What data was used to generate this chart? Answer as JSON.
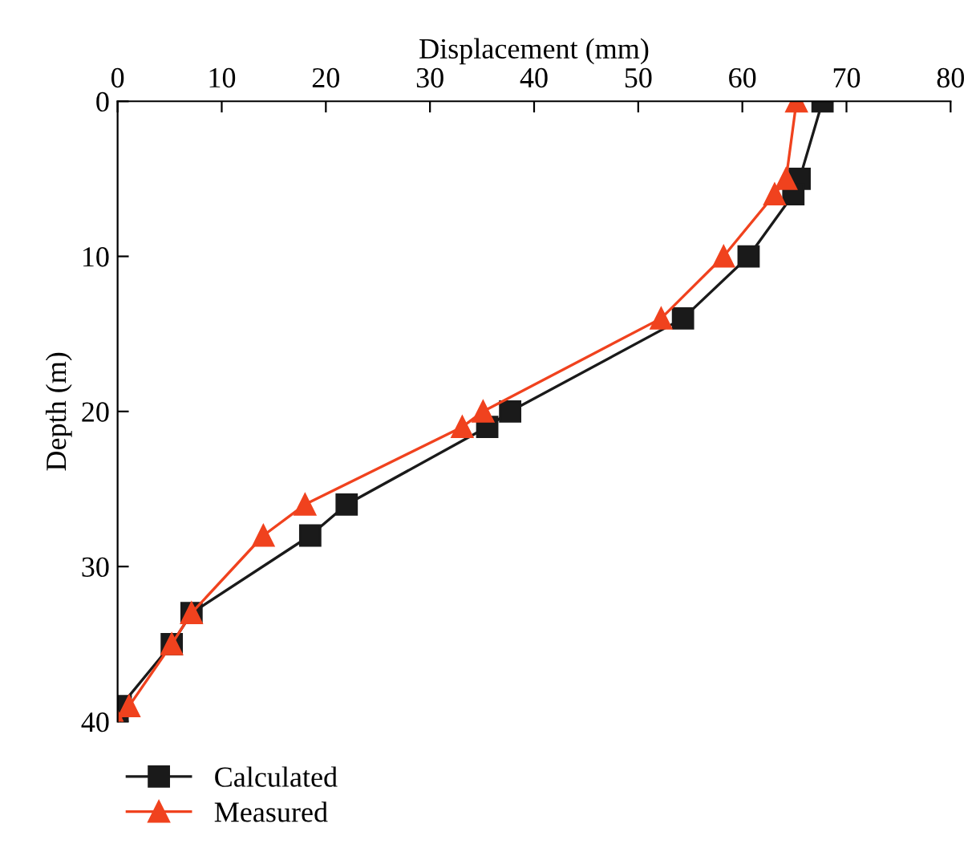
{
  "chart_data": {
    "type": "line",
    "xlabel": "Displacement (mm)",
    "ylabel": "Depth (m)",
    "xlim": [
      0,
      80
    ],
    "xticks": [
      0,
      10,
      20,
      30,
      40,
      50,
      60,
      70,
      80
    ],
    "ylim": [
      40,
      0
    ],
    "yticks": [
      0,
      10,
      20,
      30,
      40
    ],
    "grid": false,
    "legend": "bottom left",
    "series": [
      {
        "name": "Calculated",
        "color": "#1a1a1a",
        "marker": "square",
        "x": [
          67.7,
          65.5,
          64.9,
          60.6,
          54.3,
          37.7,
          35.5,
          22,
          18.5,
          7.1,
          5.2,
          0.3,
          0
        ],
        "values": [
          0,
          5,
          6,
          10,
          14,
          20,
          21,
          26,
          28,
          33,
          35,
          39,
          40
        ]
      },
      {
        "name": "Measured",
        "color": "#f0421e",
        "marker": "triangle",
        "x": [
          65.2,
          64.2,
          63.1,
          58.2,
          52.2,
          35.1,
          33.1,
          18,
          14,
          7.1,
          5.2,
          1.1,
          0
        ],
        "values": [
          0,
          5,
          6,
          10,
          14,
          20,
          21,
          26,
          28,
          33,
          35,
          39,
          40
        ]
      }
    ]
  }
}
